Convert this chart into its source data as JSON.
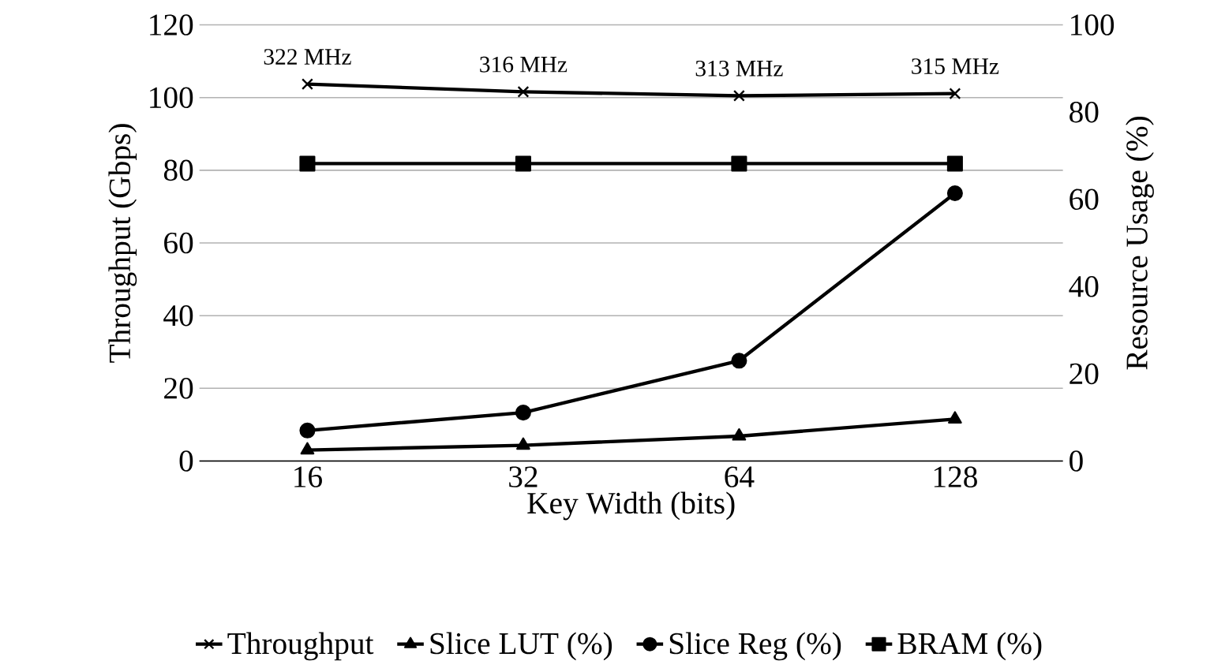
{
  "chart_data": {
    "type": "line",
    "xlabel": "Key Width (bits)",
    "ylabel": "Throughput (Gbps)",
    "y2label": "Resource Usage (%)",
    "categories": [
      "16",
      "32",
      "64",
      "128"
    ],
    "ylim": [
      0,
      120
    ],
    "yticks": [
      0,
      20,
      40,
      60,
      80,
      100,
      120
    ],
    "y2lim": [
      0,
      100
    ],
    "y2ticks": [
      0,
      20,
      40,
      60,
      80,
      100
    ],
    "grid": "y",
    "legend": "bottom",
    "line_style": "solid",
    "series": [
      {
        "name": "Throughput",
        "color": "#000000",
        "marker": "cross",
        "values": [
          103.7,
          101.6,
          100.5,
          101.1
        ]
      },
      {
        "name": "Slice LUT (%)",
        "color": "#000000",
        "marker": "triangle",
        "axis": "y2",
        "values": [
          2.5,
          3.6,
          5.7,
          9.6
        ]
      },
      {
        "name": "Slice Reg (%)",
        "color": "#000000",
        "marker": "circle",
        "axis": "y2",
        "values": [
          7.0,
          11.1,
          23.0,
          61.4
        ]
      },
      {
        "name": "BRAM (%)",
        "color": "#000000",
        "marker": "square",
        "axis": "y2",
        "values": [
          68.2,
          68.2,
          68.2,
          68.2
        ]
      }
    ],
    "annotations": [
      {
        "text": "322 MHz",
        "x": "16",
        "y": 103.7
      },
      {
        "text": "316 MHz",
        "x": "32",
        "y": 101.6
      },
      {
        "text": "313 MHz",
        "x": "64",
        "y": 100.5
      },
      {
        "text": "315 MHz",
        "x": "128",
        "y": 101.1
      }
    ]
  }
}
